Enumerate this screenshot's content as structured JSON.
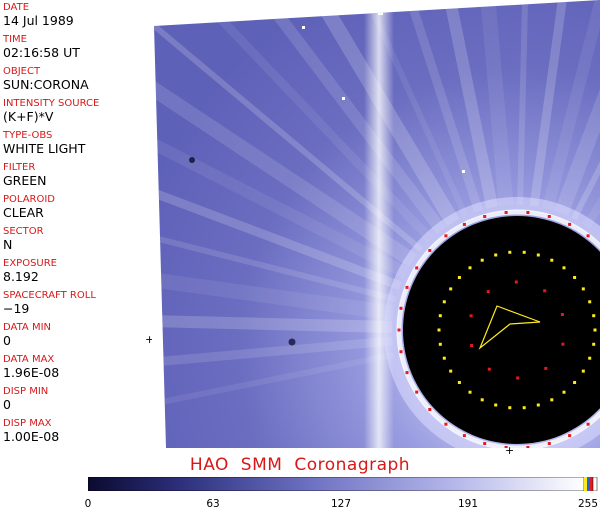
{
  "header_fields": [
    {
      "label": "DATE",
      "value": "14 Jul 1989"
    },
    {
      "label": "TIME",
      "value": "02:16:58 UT"
    },
    {
      "label": "OBJECT",
      "value": "SUN:CORONA"
    },
    {
      "label": "INTENSITY SOURCE",
      "value": "(K+F)*V"
    },
    {
      "label": "TYPE-OBS",
      "value": "WHITE LIGHT"
    },
    {
      "label": "FILTER",
      "value": "GREEN"
    },
    {
      "label": "POLAROID",
      "value": "CLEAR"
    },
    {
      "label": "SECTOR",
      "value": "N"
    },
    {
      "label": "EXPOSURE",
      "value": "8.192"
    },
    {
      "label": "SPACECRAFT ROLL",
      "value": "−19"
    },
    {
      "label": "DATA MIN",
      "value": "0"
    },
    {
      "label": "DATA MAX",
      "value": "1.96E-08"
    },
    {
      "label": "DISP MIN",
      "value": "0"
    },
    {
      "label": "DISP MAX",
      "value": "1.00E-08"
    }
  ],
  "caption": "HAO SMM Coronagraph",
  "colorbar": {
    "tick_labels": [
      "0",
      "63",
      "127",
      "191",
      "255"
    ],
    "colors": {
      "dark": "#0a0a30",
      "mid": "#5a5cb8",
      "light": "#ffffff"
    }
  },
  "image": {
    "sky_color": "#6f72c4",
    "occulter_color": "#000000",
    "marker_colors": {
      "red": "#e51b1b",
      "yellow": "#ffea1f"
    }
  },
  "tick_marks": {
    "sidebar_plus": "+",
    "bottom_plus": "+"
  }
}
